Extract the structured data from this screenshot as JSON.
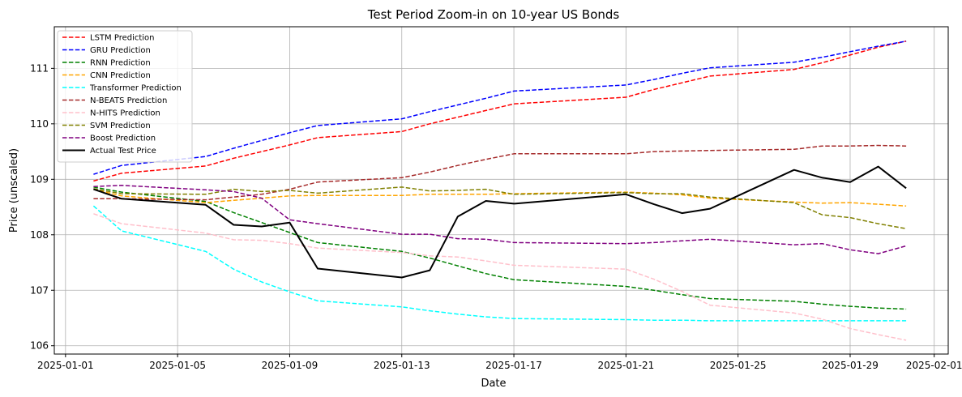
{
  "chart_data": {
    "type": "line",
    "title": "Test Period Zoom-in on 10-year US Bonds",
    "xlabel": "Date",
    "ylabel": "Price (unscaled)",
    "grid": true,
    "legend_position": "top-left",
    "xlim": [
      "2025-01-00.6",
      "2025-02-01.5"
    ],
    "ylim": [
      105.85,
      111.75
    ],
    "x_ticks": [
      "2025-01-01",
      "2025-01-05",
      "2025-01-09",
      "2025-01-13",
      "2025-01-17",
      "2025-01-21",
      "2025-01-25",
      "2025-01-29",
      "2025-02-01"
    ],
    "y_ticks": [
      106,
      107,
      108,
      109,
      110,
      111
    ],
    "dates": [
      "2025-01-02",
      "2025-01-03",
      "2025-01-06",
      "2025-01-07",
      "2025-01-08",
      "2025-01-09",
      "2025-01-10",
      "2025-01-13",
      "2025-01-14",
      "2025-01-15",
      "2025-01-16",
      "2025-01-17",
      "2025-01-21",
      "2025-01-22",
      "2025-01-23",
      "2025-01-24",
      "2025-01-27",
      "2025-01-28",
      "2025-01-29",
      "2025-01-30",
      "2025-01-31"
    ],
    "series": [
      {
        "name": "LSTM Prediction",
        "color": "#ff0000",
        "dash": "dashed",
        "values": [
          108.97,
          109.11,
          109.24,
          109.38,
          109.5,
          109.62,
          109.75,
          109.86,
          110.0,
          110.12,
          110.24,
          110.36,
          110.48,
          110.62,
          110.74,
          110.86,
          110.98,
          111.1,
          111.24,
          111.38,
          111.49
        ]
      },
      {
        "name": "GRU Prediction",
        "color": "#0000ff",
        "dash": "dashed",
        "values": [
          109.09,
          109.25,
          109.41,
          109.56,
          109.7,
          109.84,
          109.97,
          110.09,
          110.22,
          110.34,
          110.46,
          110.59,
          110.7,
          110.8,
          110.91,
          111.01,
          111.11,
          111.2,
          111.3,
          111.4,
          111.49
        ]
      },
      {
        "name": "RNN Prediction",
        "color": "#008000",
        "dash": "dashed",
        "values": [
          108.86,
          108.77,
          108.6,
          108.4,
          108.22,
          108.04,
          107.86,
          107.7,
          107.58,
          107.44,
          107.3,
          107.19,
          107.07,
          107.0,
          106.92,
          106.85,
          106.8,
          106.75,
          106.71,
          106.68,
          106.66
        ]
      },
      {
        "name": "CNN Prediction",
        "color": "#ffa500",
        "dash": "dashed",
        "values": [
          108.82,
          108.7,
          108.58,
          108.62,
          108.66,
          108.7,
          108.71,
          108.71,
          108.73,
          108.73,
          108.73,
          108.74,
          108.77,
          108.75,
          108.72,
          108.66,
          108.59,
          108.57,
          108.58,
          108.55,
          108.52
        ]
      },
      {
        "name": "Transformer Prediction",
        "color": "#00ffff",
        "dash": "dashed",
        "values": [
          108.52,
          108.07,
          107.7,
          107.38,
          107.15,
          106.97,
          106.81,
          106.7,
          106.63,
          106.57,
          106.52,
          106.49,
          106.47,
          106.46,
          106.46,
          106.45,
          106.45,
          106.45,
          106.45,
          106.45,
          106.45
        ]
      },
      {
        "name": "N-BEATS Prediction",
        "color": "#a52a2a",
        "dash": "dashed",
        "values": [
          108.65,
          108.65,
          108.63,
          108.68,
          108.73,
          108.82,
          108.95,
          109.03,
          109.13,
          109.25,
          109.36,
          109.46,
          109.46,
          109.5,
          109.51,
          109.52,
          109.54,
          109.6,
          109.6,
          109.61,
          109.6
        ]
      },
      {
        "name": "N-HITS Prediction",
        "color": "#ffc0cb",
        "dash": "dashed",
        "values": [
          108.38,
          108.2,
          108.03,
          107.91,
          107.9,
          107.84,
          107.76,
          107.68,
          107.62,
          107.6,
          107.53,
          107.45,
          107.38,
          107.2,
          106.98,
          106.73,
          106.59,
          106.48,
          106.31,
          106.2,
          106.1
        ]
      },
      {
        "name": "SVM Prediction",
        "color": "#808000",
        "dash": "dashed",
        "values": [
          108.83,
          108.74,
          108.73,
          108.82,
          108.78,
          108.8,
          108.75,
          108.86,
          108.79,
          108.8,
          108.82,
          108.73,
          108.76,
          108.74,
          108.74,
          108.68,
          108.58,
          108.36,
          108.31,
          108.2,
          108.11
        ]
      },
      {
        "name": "Boost Prediction",
        "color": "#800080",
        "dash": "dashed",
        "values": [
          108.87,
          108.89,
          108.81,
          108.78,
          108.66,
          108.27,
          108.2,
          108.01,
          108.01,
          107.93,
          107.92,
          107.86,
          107.84,
          107.86,
          107.89,
          107.92,
          107.82,
          107.84,
          107.73,
          107.66,
          107.8
        ]
      },
      {
        "name": "Actual Test Price",
        "color": "#000000",
        "dash": "solid",
        "values": [
          108.82,
          108.65,
          108.54,
          108.18,
          108.15,
          108.22,
          107.39,
          107.23,
          107.36,
          108.33,
          108.61,
          108.56,
          108.73,
          108.55,
          108.39,
          108.47,
          109.17,
          109.03,
          108.95,
          109.23,
          108.84
        ]
      }
    ]
  }
}
